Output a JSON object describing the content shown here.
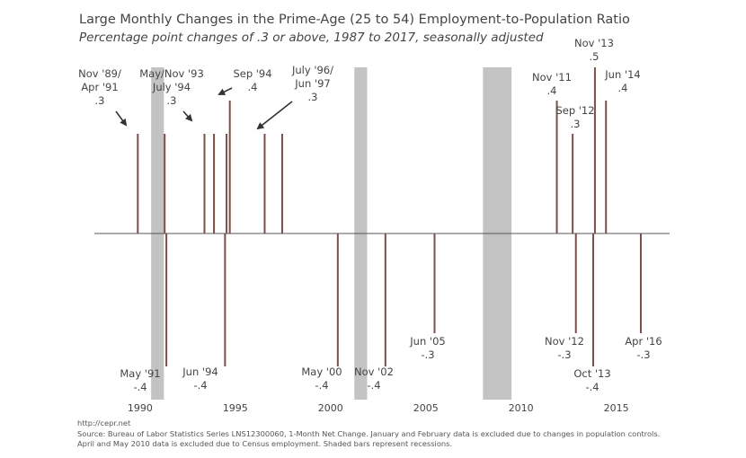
{
  "title": "Large Monthly Changes in the Prime-Age (25 to 54) Employment-to-Population Ratio",
  "subtitle": "Percentage point changes of .3 or above, 1987 to 2017, seasonally adjusted",
  "footer": {
    "url": "http://cepr.net",
    "source_line1": "Source: Bureau of Labor Statistics Series LNS12300060, 1-Month Net Change. January and February data is excluded due to changes in population controls.",
    "source_line2": "April and May 2010 data is excluded due to Census employment. Shaded bars represent recessions."
  },
  "colors": {
    "bar": "#7a5048",
    "recession": "#c3c3c3",
    "zero_line": "#555555",
    "arrow": "#333333"
  },
  "chart_data": {
    "type": "bar",
    "title": "Large Monthly Changes in the Prime-Age (25 to 54) Employment-to-Population Ratio",
    "subtitle": "Percentage point changes of .3 or above, 1987 to 2017, seasonally adjusted",
    "xlabel": "",
    "ylabel": "",
    "xlim": [
      1987.6,
      2017.8
    ],
    "ylim": [
      -0.45,
      0.5
    ],
    "x_ticks": [
      1990,
      1995,
      2000,
      2005,
      2010,
      2015
    ],
    "x_tick_labels": [
      "1990",
      "1995",
      "2000",
      "2005",
      "2010",
      "2015"
    ],
    "grid": false,
    "legend": "none",
    "recessions": [
      {
        "start": 1990.58,
        "end": 1991.25
      },
      {
        "start": 2001.25,
        "end": 2001.92
      },
      {
        "start": 2008.0,
        "end": 2009.5
      }
    ],
    "points": [
      {
        "date": "1989-11",
        "x": 1989.88,
        "value": 0.3
      },
      {
        "date": "1991-04",
        "x": 1991.29,
        "value": 0.3
      },
      {
        "date": "1991-05",
        "x": 1991.38,
        "value": -0.4
      },
      {
        "date": "1993-05",
        "x": 1993.38,
        "value": 0.3
      },
      {
        "date": "1993-11",
        "x": 1993.88,
        "value": 0.3
      },
      {
        "date": "1994-06",
        "x": 1994.46,
        "value": -0.4
      },
      {
        "date": "1994-07",
        "x": 1994.54,
        "value": 0.3
      },
      {
        "date": "1994-09",
        "x": 1994.71,
        "value": 0.4
      },
      {
        "date": "1996-07",
        "x": 1996.54,
        "value": 0.3
      },
      {
        "date": "1997-06",
        "x": 1997.46,
        "value": 0.3
      },
      {
        "date": "2000-05",
        "x": 2000.38,
        "value": -0.4
      },
      {
        "date": "2002-11",
        "x": 2002.88,
        "value": -0.4
      },
      {
        "date": "2005-06",
        "x": 2005.46,
        "value": -0.3
      },
      {
        "date": "2011-11",
        "x": 2011.88,
        "value": 0.4
      },
      {
        "date": "2012-09",
        "x": 2012.71,
        "value": 0.3
      },
      {
        "date": "2012-11",
        "x": 2012.88,
        "value": -0.3
      },
      {
        "date": "2013-10",
        "x": 2013.79,
        "value": -0.4
      },
      {
        "date": "2013-11",
        "x": 2013.88,
        "value": 0.5
      },
      {
        "date": "2014-06",
        "x": 2014.46,
        "value": 0.4
      },
      {
        "date": "2016-04",
        "x": 2016.29,
        "value": -0.3
      }
    ],
    "annotations": [
      {
        "lines": [
          "Nov '89/",
          "Apr '91",
          ".3"
        ]
      },
      {
        "lines": [
          "May/Nov '93",
          "July '94",
          ".3"
        ]
      },
      {
        "lines": [
          "Sep '94",
          ".4"
        ]
      },
      {
        "lines": [
          "July '96/",
          "Jun '97",
          ".3"
        ]
      },
      {
        "lines": [
          "Nov '11",
          ".4"
        ]
      },
      {
        "lines": [
          "Sep '12",
          ".3"
        ]
      },
      {
        "lines": [
          "Nov '13",
          ".5"
        ]
      },
      {
        "lines": [
          "Jun '14",
          ".4"
        ]
      },
      {
        "lines": [
          "May '91",
          "-.4"
        ]
      },
      {
        "lines": [
          "Jun '94",
          "-.4"
        ]
      },
      {
        "lines": [
          "May '00",
          "-.4"
        ]
      },
      {
        "lines": [
          "Nov '02",
          "-.4"
        ]
      },
      {
        "lines": [
          "Jun '05",
          "-.3"
        ]
      },
      {
        "lines": [
          "Nov '12",
          "-.3"
        ]
      },
      {
        "lines": [
          "Oct '13",
          "-.4"
        ]
      },
      {
        "lines": [
          "Apr '16",
          "-.3"
        ]
      }
    ]
  }
}
